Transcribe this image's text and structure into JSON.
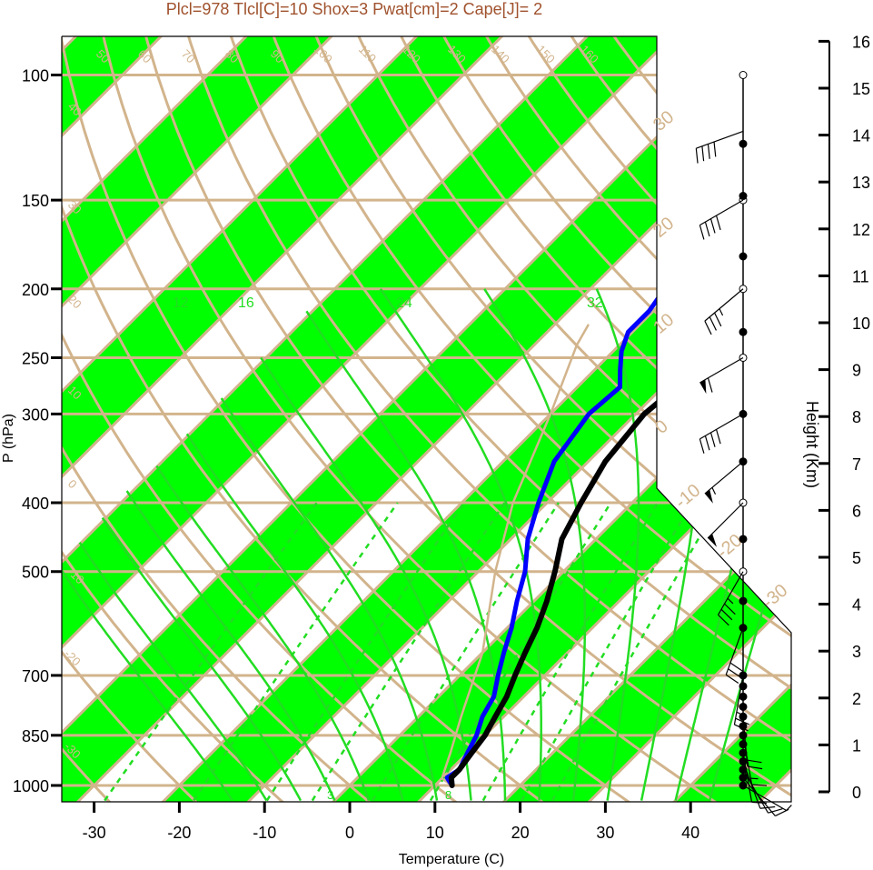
{
  "colors": {
    "band": "#00ff00",
    "isobar": "#d2b48c",
    "temperature": "#000000",
    "dewpoint": "#0000ff",
    "moist_adiabat": "#22dd22",
    "parcel": "#d2b48c",
    "title": "#a0522d"
  },
  "chart_data": {
    "type": "line",
    "title": "Plcl=978 Tlcl[C]=10 Shox=3 Pwat[cm]=2 Cape[J]= 2",
    "xlabel": "Temperature (C)",
    "ylabel": "P (hPa)",
    "y2label": "Height (Km)",
    "xlim": [
      -33,
      36
    ],
    "ylim": [
      1050,
      100
    ],
    "y_scale": "log",
    "x_ticks": [
      "-30",
      "-20",
      "-10",
      "0",
      "10",
      "20",
      "30",
      "40"
    ],
    "y_ticks": [
      "100",
      "150",
      "200",
      "250",
      "300",
      "400",
      "500",
      "700",
      "850",
      "1000"
    ],
    "height_ticks": [
      "0",
      "1",
      "2",
      "3",
      "4",
      "5",
      "6",
      "7",
      "8",
      "9",
      "10",
      "11",
      "12",
      "13",
      "14",
      "15",
      "16"
    ],
    "isotherm_labels": [
      "50",
      "60",
      "70",
      "80",
      "90",
      "100",
      "110",
      "120",
      "130",
      "140",
      "150",
      "160",
      "40",
      "30",
      "20",
      "10",
      "0",
      "-10",
      "-20",
      "-30"
    ],
    "dry_adiabat_labels": [
      "30",
      "20",
      "10",
      "0",
      "-10",
      "-20",
      "-30"
    ],
    "mixing_ratio_labels": [
      "3",
      "8"
    ],
    "moist_adiabat_labels": [
      "12",
      "16",
      "24",
      "32"
    ],
    "series": [
      {
        "role": "temperature",
        "points": [
          [
            12,
            1000
          ],
          [
            11,
            975
          ],
          [
            11,
            950
          ],
          [
            10.5,
            900
          ],
          [
            10,
            850
          ],
          [
            9,
            800
          ],
          [
            8,
            750
          ],
          [
            6.5,
            700
          ],
          [
            5,
            650
          ],
          [
            3.5,
            600
          ],
          [
            1.5,
            550
          ],
          [
            -1,
            500
          ],
          [
            -4,
            450
          ],
          [
            -6,
            400
          ],
          [
            -8,
            350
          ],
          [
            -9,
            300
          ],
          [
            -8.5,
            280
          ],
          [
            -6,
            260
          ],
          [
            -5,
            250
          ],
          [
            -3.5,
            230
          ],
          [
            -2,
            210
          ],
          [
            -1,
            200
          ],
          [
            0.5,
            180
          ],
          [
            3,
            160
          ],
          [
            4.5,
            150
          ],
          [
            6.5,
            135
          ],
          [
            8.5,
            125
          ],
          [
            10.5,
            115
          ],
          [
            12.5,
            110
          ],
          [
            14,
            105
          ]
        ]
      },
      {
        "role": "dewpoint",
        "points": [
          [
            12,
            1000
          ],
          [
            10.5,
            975
          ],
          [
            11,
            950
          ],
          [
            10,
            900
          ],
          [
            9,
            850
          ],
          [
            7.5,
            800
          ],
          [
            6.5,
            750
          ],
          [
            4.5,
            700
          ],
          [
            2.5,
            650
          ],
          [
            0.5,
            600
          ],
          [
            -2,
            550
          ],
          [
            -4.5,
            500
          ],
          [
            -8,
            450
          ],
          [
            -11,
            400
          ],
          [
            -14,
            350
          ],
          [
            -15.5,
            300
          ],
          [
            -15,
            275
          ],
          [
            -17,
            260
          ],
          [
            -19,
            245
          ],
          [
            -20.5,
            230
          ],
          [
            -20.5,
            215
          ],
          [
            -21,
            205
          ],
          [
            -23.5,
            190
          ],
          [
            -17,
            160
          ],
          [
            -12,
            140
          ],
          [
            -6,
            120
          ],
          [
            -1.5,
            108
          ]
        ]
      },
      {
        "role": "parcel",
        "points": [
          [
            12,
            1000
          ],
          [
            10,
            978
          ],
          [
            8,
            900
          ],
          [
            5,
            800
          ],
          [
            0,
            650
          ],
          [
            -8,
            500
          ],
          [
            -14,
            400
          ],
          [
            -20,
            300
          ],
          [
            -25,
            240
          ],
          [
            -26,
            225
          ]
        ]
      }
    ]
  },
  "wind_barbs": [
    {
      "pressure": 1000,
      "speed": 5,
      "direction": 300
    },
    {
      "pressure": 975,
      "speed": 10,
      "direction": 320
    },
    {
      "pressure": 950,
      "speed": 10,
      "direction": 330
    },
    {
      "pressure": 925,
      "speed": 10,
      "direction": 340
    },
    {
      "pressure": 900,
      "speed": 10,
      "direction": 350
    },
    {
      "pressure": 850,
      "speed": 15,
      "direction": 350
    },
    {
      "pressure": 800,
      "speed": 20,
      "direction": 355
    },
    {
      "pressure": 700,
      "speed": 25,
      "direction": 10
    },
    {
      "pressure": 600,
      "speed": 30,
      "direction": 20
    },
    {
      "pressure": 500,
      "speed": 35,
      "direction": 30
    },
    {
      "pressure": 400,
      "speed": 50,
      "direction": 45
    },
    {
      "pressure": 350,
      "speed": 55,
      "direction": 50
    },
    {
      "pressure": 300,
      "speed": 40,
      "direction": 60
    },
    {
      "pressure": 250,
      "speed": 60,
      "direction": 60
    },
    {
      "pressure": 200,
      "speed": 35,
      "direction": 50
    },
    {
      "pressure": 150,
      "speed": 40,
      "direction": 60
    },
    {
      "pressure": 120,
      "speed": 40,
      "direction": 70
    }
  ],
  "wind_points": [
    {
      "pressure": 1000,
      "filled": true
    },
    {
      "pressure": 975,
      "filled": true
    },
    {
      "pressure": 950,
      "filled": true
    },
    {
      "pressure": 925,
      "filled": true
    },
    {
      "pressure": 900,
      "filled": true
    },
    {
      "pressure": 875,
      "filled": true
    },
    {
      "pressure": 850,
      "filled": true
    },
    {
      "pressure": 825,
      "filled": true
    },
    {
      "pressure": 800,
      "filled": true
    },
    {
      "pressure": 775,
      "filled": true
    },
    {
      "pressure": 750,
      "filled": true
    },
    {
      "pressure": 725,
      "filled": true
    },
    {
      "pressure": 700,
      "filled": true
    },
    {
      "pressure": 600,
      "filled": true
    },
    {
      "pressure": 550,
      "filled": true
    },
    {
      "pressure": 500,
      "filled": false
    },
    {
      "pressure": 450,
      "filled": true
    },
    {
      "pressure": 400,
      "filled": false
    },
    {
      "pressure": 350,
      "filled": true
    },
    {
      "pressure": 300,
      "filled": true
    },
    {
      "pressure": 250,
      "filled": false
    },
    {
      "pressure": 230,
      "filled": true
    },
    {
      "pressure": 200,
      "filled": false
    },
    {
      "pressure": 180,
      "filled": true
    },
    {
      "pressure": 150,
      "filled": false
    },
    {
      "pressure": 148,
      "filled": true
    },
    {
      "pressure": 125,
      "filled": true
    },
    {
      "pressure": 100,
      "filled": false
    }
  ]
}
